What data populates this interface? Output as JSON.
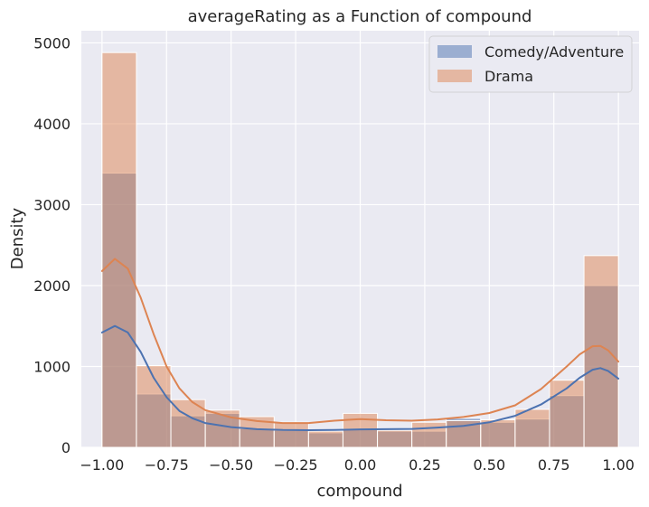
{
  "chart_data": {
    "type": "histogram",
    "title": "averageRating as a Function of compound",
    "xlabel": "compound",
    "ylabel": "Density",
    "xlim": [
      -1.08,
      1.08
    ],
    "ylim": [
      0,
      5150
    ],
    "xticks": [
      -1.0,
      -0.75,
      -0.5,
      -0.25,
      0.0,
      0.25,
      0.5,
      0.75,
      1.0
    ],
    "xtick_labels": [
      "−1.00",
      "−0.75",
      "−0.50",
      "−0.25",
      "0.00",
      "0.25",
      "0.50",
      "0.75",
      "1.00"
    ],
    "yticks": [
      0,
      1000,
      2000,
      3000,
      4000,
      5000
    ],
    "ytick_labels": [
      "0",
      "1000",
      "2000",
      "3000",
      "4000",
      "5000"
    ],
    "grid": true,
    "legend_position": "top-right",
    "bin_edges": [
      -1.0,
      -0.8667,
      -0.7333,
      -0.6,
      -0.4667,
      -0.3333,
      -0.2,
      -0.0667,
      0.0667,
      0.2,
      0.3333,
      0.4667,
      0.6,
      0.7333,
      0.8667,
      1.0
    ],
    "series": [
      {
        "name": "Comedy/Adventure",
        "color": "#4c72b0",
        "kde_color": "#4c72b0",
        "counts": [
          3390,
          660,
          390,
          420,
          230,
          210,
          180,
          230,
          200,
          200,
          360,
          310,
          350,
          640,
          2000
        ],
        "kde": [
          [
            -1.0,
            1420
          ],
          [
            -0.95,
            1500
          ],
          [
            -0.9,
            1420
          ],
          [
            -0.85,
            1180
          ],
          [
            -0.8,
            860
          ],
          [
            -0.75,
            620
          ],
          [
            -0.7,
            450
          ],
          [
            -0.65,
            360
          ],
          [
            -0.6,
            300
          ],
          [
            -0.5,
            250
          ],
          [
            -0.4,
            225
          ],
          [
            -0.3,
            215
          ],
          [
            -0.2,
            212
          ],
          [
            -0.1,
            215
          ],
          [
            0.0,
            222
          ],
          [
            0.1,
            225
          ],
          [
            0.2,
            228
          ],
          [
            0.3,
            245
          ],
          [
            0.4,
            265
          ],
          [
            0.5,
            310
          ],
          [
            0.6,
            390
          ],
          [
            0.7,
            530
          ],
          [
            0.8,
            730
          ],
          [
            0.85,
            860
          ],
          [
            0.9,
            960
          ],
          [
            0.93,
            980
          ],
          [
            0.96,
            945
          ],
          [
            1.0,
            850
          ]
        ]
      },
      {
        "name": "Drama",
        "color": "#dd8452",
        "kde_color": "#dd8452",
        "counts": [
          4880,
          1010,
          590,
          460,
          380,
          310,
          200,
          420,
          210,
          310,
          330,
          340,
          470,
          830,
          2370
        ],
        "kde": [
          [
            -1.0,
            2180
          ],
          [
            -0.95,
            2330
          ],
          [
            -0.9,
            2210
          ],
          [
            -0.85,
            1850
          ],
          [
            -0.8,
            1400
          ],
          [
            -0.75,
            1000
          ],
          [
            -0.7,
            730
          ],
          [
            -0.65,
            560
          ],
          [
            -0.6,
            460
          ],
          [
            -0.5,
            370
          ],
          [
            -0.4,
            325
          ],
          [
            -0.3,
            300
          ],
          [
            -0.2,
            300
          ],
          [
            -0.1,
            330
          ],
          [
            0.0,
            350
          ],
          [
            0.1,
            335
          ],
          [
            0.2,
            330
          ],
          [
            0.3,
            345
          ],
          [
            0.4,
            375
          ],
          [
            0.5,
            425
          ],
          [
            0.6,
            520
          ],
          [
            0.7,
            720
          ],
          [
            0.8,
            1000
          ],
          [
            0.85,
            1150
          ],
          [
            0.9,
            1250
          ],
          [
            0.93,
            1255
          ],
          [
            0.96,
            1200
          ],
          [
            1.0,
            1060
          ]
        ]
      }
    ]
  }
}
